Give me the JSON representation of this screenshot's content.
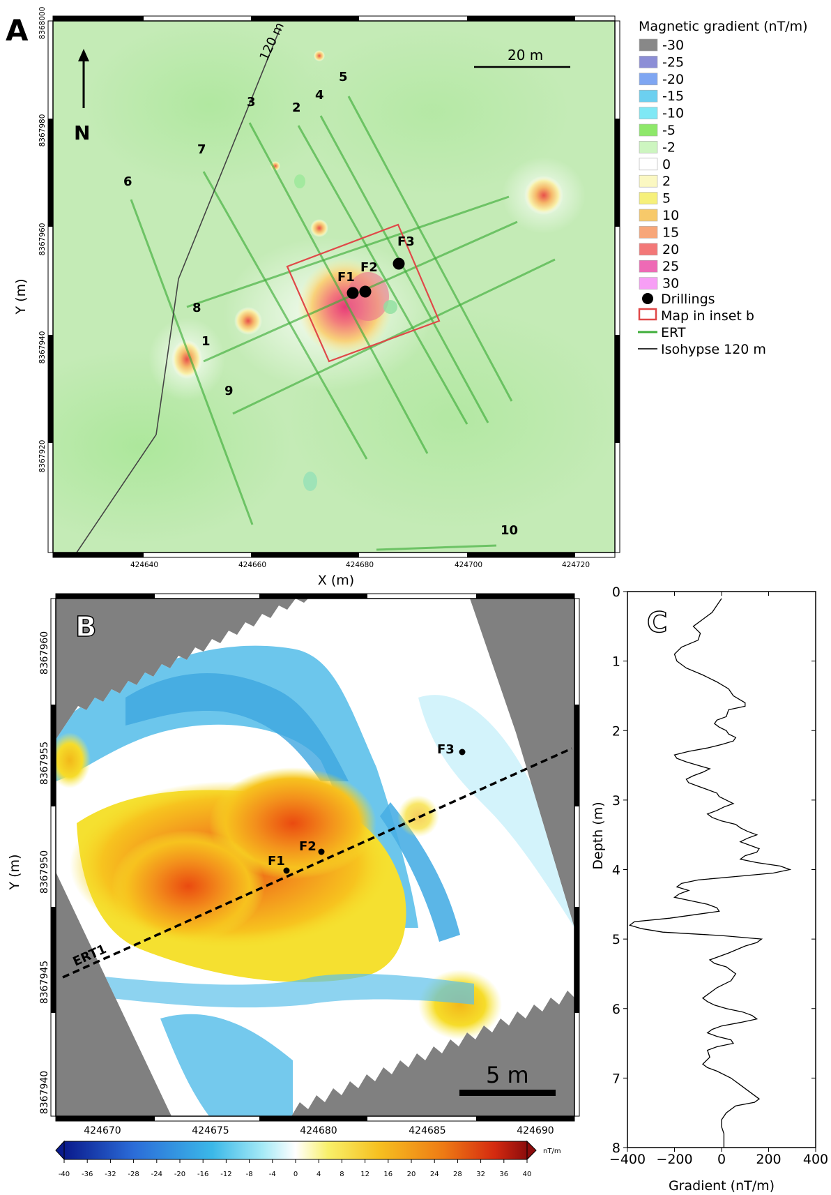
{
  "panel_a": {
    "letter": "A",
    "north": "N",
    "scale_label": "20 m",
    "isohypse_label": "120 m",
    "x_title": "X (m)",
    "y_title": "Y (m)",
    "x_ticks": [
      "424640",
      "424660",
      "424680",
      "424700",
      "424720"
    ],
    "y_ticks": [
      "8368000",
      "8367980",
      "8367960",
      "8367940",
      "8367920"
    ],
    "profile_labels": [
      "1",
      "2",
      "3",
      "4",
      "5",
      "6",
      "7",
      "8",
      "9",
      "10"
    ],
    "drillings": [
      "F1",
      "F2",
      "F3"
    ]
  },
  "legend": {
    "title": "Magnetic gradient (nT/m)",
    "entries": [
      {
        "value": "-30",
        "color": "#888888"
      },
      {
        "value": "-25",
        "color": "#8c8ed6"
      },
      {
        "value": "-20",
        "color": "#7fa6f2"
      },
      {
        "value": "-15",
        "color": "#6cd0f0"
      },
      {
        "value": "-10",
        "color": "#7fe8f5"
      },
      {
        "value": "-5",
        "color": "#8ee86a"
      },
      {
        "value": "-2",
        "color": "#cdf5c0"
      },
      {
        "value": "0",
        "color": "#ffffff"
      },
      {
        "value": "2",
        "color": "#fbf8c2"
      },
      {
        "value": "5",
        "color": "#f6f07a"
      },
      {
        "value": "10",
        "color": "#f7c96a"
      },
      {
        "value": "15",
        "color": "#f7a679"
      },
      {
        "value": "20",
        "color": "#f37878"
      },
      {
        "value": "25",
        "color": "#ee6ab5"
      },
      {
        "value": "30",
        "color": "#f79ff5"
      }
    ],
    "drillings": "Drillings",
    "inset": "Map in inset b",
    "ert": "ERT",
    "isohypse": "Isohypse 120 m"
  },
  "panel_b": {
    "letter": "B",
    "scale_label": "5 m",
    "ert_label": "ERT1",
    "y_title": "Y (m)",
    "x_ticks": [
      "424670",
      "424675",
      "424680",
      "424685",
      "424690"
    ],
    "y_ticks": [
      "8367960",
      "8367955",
      "8367950",
      "8367945",
      "8367940"
    ],
    "drillings": [
      "F1",
      "F2",
      "F3"
    ]
  },
  "colorbar": {
    "unit": "nT/m",
    "ticks": [
      "-40",
      "-36",
      "-32",
      "-28",
      "-24",
      "-20",
      "-16",
      "-12",
      "-8",
      "-4",
      "0",
      "4",
      "8",
      "12",
      "16",
      "20",
      "24",
      "28",
      "32",
      "36",
      "40"
    ]
  },
  "chart_data": {
    "type": "line",
    "title": "",
    "panel_letter": "C",
    "xlabel": "Gradient (nT/m)",
    "ylabel": "Depth (m)",
    "xlim": [
      -400,
      400
    ],
    "ylim": [
      8,
      0
    ],
    "x_ticks": [
      "−400",
      "−200",
      "0",
      "200",
      "400"
    ],
    "y_ticks": [
      "0",
      "1",
      "2",
      "3",
      "4",
      "5",
      "6",
      "7",
      "8"
    ],
    "series": [
      {
        "gradient": [
          0,
          -20,
          -40,
          -80,
          -120,
          -90,
          -100,
          -170,
          -200,
          -190,
          -150,
          -80,
          -20,
          30,
          50,
          100,
          100,
          30,
          20,
          -20,
          -30,
          -10,
          20,
          30,
          60,
          50,
          0,
          -60,
          -140,
          -200,
          -190,
          -150,
          -100,
          -50,
          -80,
          -120,
          -150,
          -140,
          -100,
          -60,
          -20,
          -10,
          20,
          50,
          10,
          -20,
          -60,
          -40,
          0,
          60,
          80,
          110,
          150,
          110,
          80,
          120,
          160,
          150,
          100,
          80,
          150,
          250,
          290,
          220,
          60,
          -100,
          -170,
          -190,
          -140,
          -180,
          -200,
          -130,
          -60,
          -20,
          -10,
          -220,
          -370,
          -390,
          -340,
          -250,
          0,
          170,
          150,
          100,
          30,
          -50,
          -30,
          20,
          60,
          40,
          -20,
          -60,
          -80,
          -60,
          -30,
          20,
          90,
          130,
          150,
          80,
          0,
          -40,
          -60,
          -20,
          40,
          50,
          -20,
          -60,
          -50,
          -80,
          -60,
          -20,
          40,
          80,
          120,
          160,
          140,
          60,
          20,
          0,
          0,
          10,
          10,
          10
        ],
        "depth": [
          0.1,
          0.2,
          0.3,
          0.4,
          0.5,
          0.6,
          0.7,
          0.8,
          0.9,
          1.0,
          1.1,
          1.2,
          1.3,
          1.4,
          1.5,
          1.6,
          1.65,
          1.7,
          1.8,
          1.85,
          1.9,
          1.95,
          2.0,
          2.05,
          2.1,
          2.15,
          2.2,
          2.25,
          2.3,
          2.35,
          2.4,
          2.45,
          2.5,
          2.55,
          2.6,
          2.65,
          2.7,
          2.75,
          2.8,
          2.85,
          2.9,
          2.95,
          3.0,
          3.05,
          3.1,
          3.15,
          3.2,
          3.25,
          3.3,
          3.35,
          3.4,
          3.45,
          3.5,
          3.55,
          3.6,
          3.65,
          3.7,
          3.75,
          3.8,
          3.85,
          3.9,
          3.95,
          4.0,
          4.05,
          4.1,
          4.15,
          4.2,
          4.25,
          4.3,
          4.35,
          4.4,
          4.45,
          4.5,
          4.55,
          4.6,
          4.7,
          4.75,
          4.8,
          4.85,
          4.9,
          4.95,
          5.0,
          5.05,
          5.1,
          5.2,
          5.3,
          5.35,
          5.4,
          5.5,
          5.6,
          5.7,
          5.8,
          5.85,
          5.9,
          5.95,
          6.0,
          6.05,
          6.1,
          6.15,
          6.2,
          6.25,
          6.3,
          6.35,
          6.4,
          6.45,
          6.5,
          6.55,
          6.6,
          6.7,
          6.8,
          6.85,
          6.9,
          7.0,
          7.1,
          7.2,
          7.3,
          7.35,
          7.4,
          7.5,
          7.6,
          7.7,
          7.8,
          7.9,
          8.0
        ]
      }
    ]
  }
}
